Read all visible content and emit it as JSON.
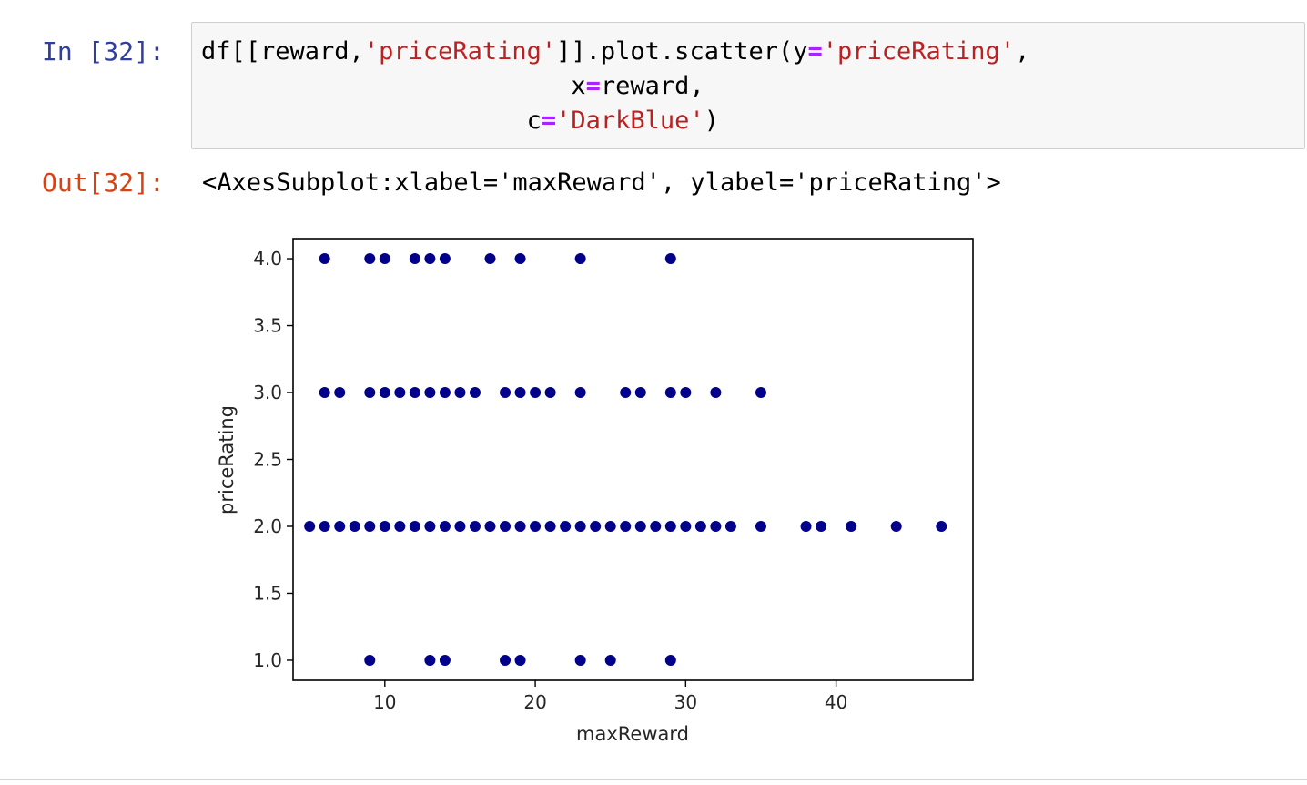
{
  "cell": {
    "in_prompt": "In [32]:",
    "code_lines": [
      [
        {
          "t": "df[[reward,",
          "c": "plain"
        },
        {
          "t": "'priceRating'",
          "c": "str"
        },
        {
          "t": "]].plot.scatter(y",
          "c": "plain"
        },
        {
          "t": "=",
          "c": "op"
        },
        {
          "t": "'priceRating'",
          "c": "str"
        },
        {
          "t": ",",
          "c": "plain"
        }
      ],
      [
        {
          "t": "                         x",
          "c": "plain"
        },
        {
          "t": "=",
          "c": "op"
        },
        {
          "t": "reward,",
          "c": "plain"
        }
      ],
      [
        {
          "t": "                      c",
          "c": "plain"
        },
        {
          "t": "=",
          "c": "op"
        },
        {
          "t": "'DarkBlue'",
          "c": "str"
        },
        {
          "t": ")",
          "c": "plain"
        }
      ]
    ],
    "out_prompt": "Out[32]:",
    "out_text": "<AxesSubplot:xlabel='maxReward', ylabel='priceRating'>"
  },
  "colors": {
    "point": "#00008b",
    "string": "#ba2121",
    "operator": "#aa22ff",
    "in_prompt": "#303f9f",
    "out_prompt": "#d84315"
  },
  "chart_data": {
    "type": "scatter",
    "title": "",
    "xlabel": "maxReward",
    "ylabel": "priceRating",
    "xlim": [
      3.9,
      49.1
    ],
    "ylim": [
      0.85,
      4.15
    ],
    "xticks": [
      10,
      20,
      30,
      40
    ],
    "xtick_labels": [
      "10",
      "20",
      "30",
      "40"
    ],
    "yticks": [
      1.0,
      1.5,
      2.0,
      2.5,
      3.0,
      3.5,
      4.0
    ],
    "ytick_labels": [
      "1.0",
      "1.5",
      "2.0",
      "2.5",
      "3.0",
      "3.5",
      "4.0"
    ],
    "grid": false,
    "color": "DarkBlue",
    "points": [
      {
        "x": 6,
        "y": 4.0
      },
      {
        "x": 9,
        "y": 4.0
      },
      {
        "x": 10,
        "y": 4.0
      },
      {
        "x": 12,
        "y": 4.0
      },
      {
        "x": 13,
        "y": 4.0
      },
      {
        "x": 14,
        "y": 4.0
      },
      {
        "x": 17,
        "y": 4.0
      },
      {
        "x": 19,
        "y": 4.0
      },
      {
        "x": 23,
        "y": 4.0
      },
      {
        "x": 29,
        "y": 4.0
      },
      {
        "x": 6,
        "y": 3.0
      },
      {
        "x": 7,
        "y": 3.0
      },
      {
        "x": 9,
        "y": 3.0
      },
      {
        "x": 10,
        "y": 3.0
      },
      {
        "x": 11,
        "y": 3.0
      },
      {
        "x": 12,
        "y": 3.0
      },
      {
        "x": 13,
        "y": 3.0
      },
      {
        "x": 14,
        "y": 3.0
      },
      {
        "x": 15,
        "y": 3.0
      },
      {
        "x": 16,
        "y": 3.0
      },
      {
        "x": 18,
        "y": 3.0
      },
      {
        "x": 19,
        "y": 3.0
      },
      {
        "x": 20,
        "y": 3.0
      },
      {
        "x": 21,
        "y": 3.0
      },
      {
        "x": 23,
        "y": 3.0
      },
      {
        "x": 26,
        "y": 3.0
      },
      {
        "x": 27,
        "y": 3.0
      },
      {
        "x": 29,
        "y": 3.0
      },
      {
        "x": 30,
        "y": 3.0
      },
      {
        "x": 32,
        "y": 3.0
      },
      {
        "x": 35,
        "y": 3.0
      },
      {
        "x": 5,
        "y": 2.0
      },
      {
        "x": 6,
        "y": 2.0
      },
      {
        "x": 7,
        "y": 2.0
      },
      {
        "x": 8,
        "y": 2.0
      },
      {
        "x": 9,
        "y": 2.0
      },
      {
        "x": 10,
        "y": 2.0
      },
      {
        "x": 11,
        "y": 2.0
      },
      {
        "x": 12,
        "y": 2.0
      },
      {
        "x": 13,
        "y": 2.0
      },
      {
        "x": 14,
        "y": 2.0
      },
      {
        "x": 15,
        "y": 2.0
      },
      {
        "x": 16,
        "y": 2.0
      },
      {
        "x": 17,
        "y": 2.0
      },
      {
        "x": 18,
        "y": 2.0
      },
      {
        "x": 19,
        "y": 2.0
      },
      {
        "x": 20,
        "y": 2.0
      },
      {
        "x": 21,
        "y": 2.0
      },
      {
        "x": 22,
        "y": 2.0
      },
      {
        "x": 23,
        "y": 2.0
      },
      {
        "x": 24,
        "y": 2.0
      },
      {
        "x": 25,
        "y": 2.0
      },
      {
        "x": 26,
        "y": 2.0
      },
      {
        "x": 27,
        "y": 2.0
      },
      {
        "x": 28,
        "y": 2.0
      },
      {
        "x": 29,
        "y": 2.0
      },
      {
        "x": 30,
        "y": 2.0
      },
      {
        "x": 31,
        "y": 2.0
      },
      {
        "x": 32,
        "y": 2.0
      },
      {
        "x": 33,
        "y": 2.0
      },
      {
        "x": 35,
        "y": 2.0
      },
      {
        "x": 38,
        "y": 2.0
      },
      {
        "x": 39,
        "y": 2.0
      },
      {
        "x": 41,
        "y": 2.0
      },
      {
        "x": 44,
        "y": 2.0
      },
      {
        "x": 47,
        "y": 2.0
      },
      {
        "x": 9,
        "y": 1.0
      },
      {
        "x": 13,
        "y": 1.0
      },
      {
        "x": 14,
        "y": 1.0
      },
      {
        "x": 18,
        "y": 1.0
      },
      {
        "x": 19,
        "y": 1.0
      },
      {
        "x": 23,
        "y": 1.0
      },
      {
        "x": 25,
        "y": 1.0
      },
      {
        "x": 29,
        "y": 1.0
      }
    ]
  }
}
